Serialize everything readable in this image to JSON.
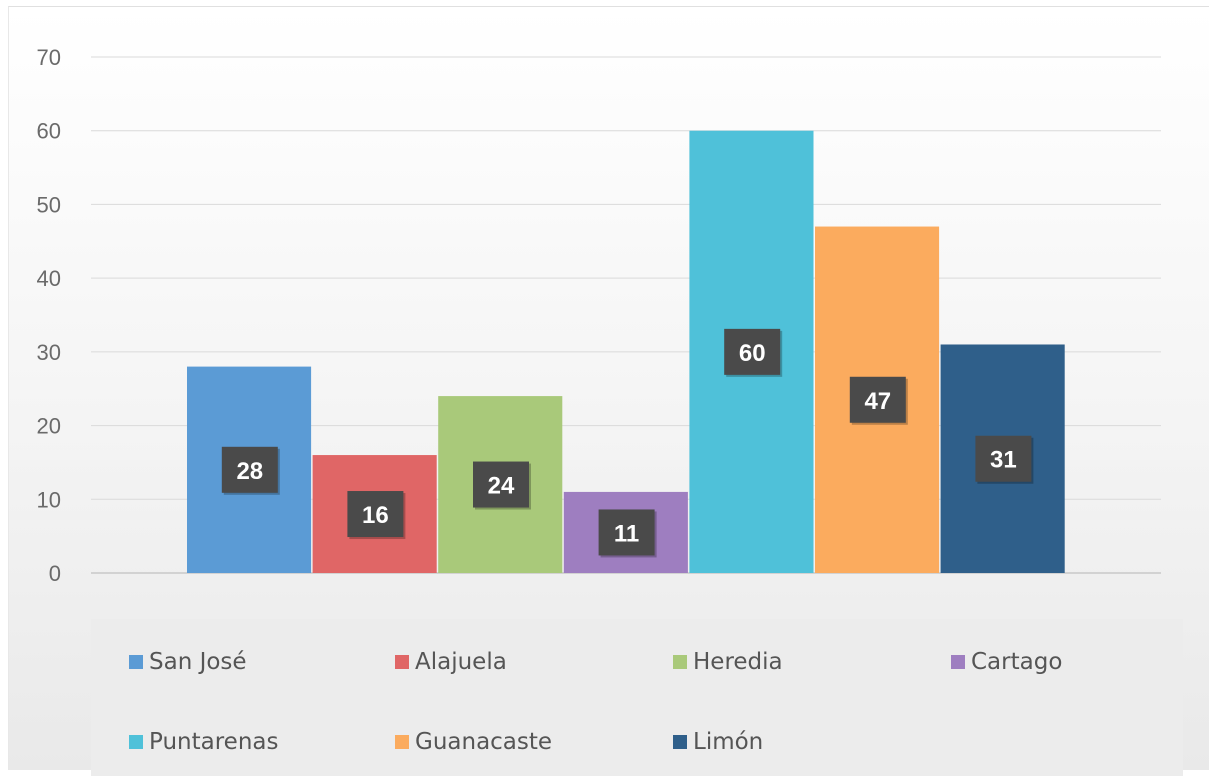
{
  "chart_data": {
    "type": "bar",
    "categories": [
      "San José",
      "Alajuela",
      "Heredia",
      "Cartago",
      "Puntarenas",
      "Guanacaste",
      "Limón"
    ],
    "values": [
      28,
      16,
      24,
      11,
      60,
      47,
      31
    ],
    "colors": [
      "#5b9bd5",
      "#e06666",
      "#a9c97a",
      "#9e7ec0",
      "#4fc1d9",
      "#fbab5e",
      "#2f5f8a"
    ],
    "label_bg_color": "#4a4a4a",
    "title": "",
    "xlabel": "",
    "ylabel": "",
    "ylim": [
      0,
      70
    ],
    "yticks": [
      "0",
      "10",
      "20",
      "30",
      "40",
      "50",
      "60",
      "70"
    ],
    "grid": true,
    "legend_position": "bottom"
  }
}
